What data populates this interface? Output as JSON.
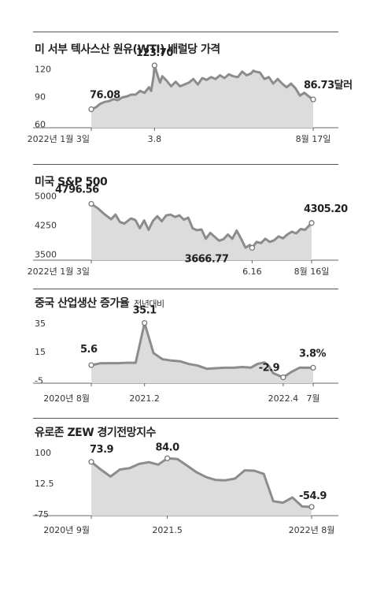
{
  "chart_data": [
    {
      "type": "area",
      "title": "미 서부 텍사스산 원유(WTI) 배럴당 가격",
      "subtitle": "",
      "y_ticks": [
        120,
        90,
        60
      ],
      "ylim": [
        56,
        128
      ],
      "x_ticks": [
        {
          "label": "2022년 1월 3일",
          "x": 0
        },
        {
          "label": "3.8",
          "x": 0.285
        },
        {
          "label": "8월 17일",
          "x": 1
        }
      ],
      "series": [
        {
          "x": [
            0,
            0.02,
            0.04,
            0.06,
            0.08,
            0.1,
            0.12,
            0.14,
            0.16,
            0.18,
            0.2,
            0.22,
            0.24,
            0.25,
            0.26,
            0.27,
            0.28,
            0.285,
            0.3,
            0.31,
            0.32,
            0.34,
            0.36,
            0.38,
            0.4,
            0.42,
            0.44,
            0.46,
            0.48,
            0.5,
            0.52,
            0.54,
            0.56,
            0.58,
            0.6,
            0.62,
            0.64,
            0.66,
            0.68,
            0.7,
            0.72,
            0.73,
            0.74,
            0.76,
            0.78,
            0.8,
            0.82,
            0.84,
            0.86,
            0.88,
            0.9,
            0.92,
            0.94,
            0.96,
            0.98,
            1
          ],
          "values": [
            76.08,
            78,
            82,
            84,
            85,
            87,
            86,
            89,
            90,
            92,
            92,
            96,
            94,
            97,
            100,
            96,
            111,
            123.7,
            112,
            105,
            112,
            107,
            101,
            106,
            101,
            103,
            105,
            109,
            103,
            110,
            108,
            111,
            109,
            113,
            110,
            114,
            112,
            111,
            117,
            113,
            115,
            118,
            117,
            116,
            109,
            111,
            104,
            109,
            104,
            100,
            104,
            99,
            91,
            94,
            90,
            86.73
          ]
        }
      ],
      "labels": [
        {
          "text": "76.08",
          "x": 0,
          "y": 76.08
        },
        {
          "text": "123.70",
          "x": 0.285,
          "y": 123.7
        },
        {
          "text": "86.73달러",
          "x": 1,
          "y": 86.73
        }
      ]
    },
    {
      "type": "area",
      "title": "미국 S&P 500",
      "subtitle": "",
      "y_ticks": [
        5000,
        4250,
        3500
      ],
      "ylim": [
        3350,
        5050
      ],
      "x_ticks": [
        {
          "label": "2022년 1월 3일",
          "x": 0
        },
        {
          "label": "6.16",
          "x": 0.73
        },
        {
          "label": "8월 16일",
          "x": 1
        }
      ],
      "series": [
        {
          "x": [
            0,
            0.03,
            0.06,
            0.09,
            0.11,
            0.13,
            0.15,
            0.18,
            0.2,
            0.22,
            0.24,
            0.26,
            0.28,
            0.3,
            0.32,
            0.34,
            0.36,
            0.38,
            0.4,
            0.42,
            0.44,
            0.46,
            0.48,
            0.5,
            0.52,
            0.54,
            0.56,
            0.58,
            0.6,
            0.62,
            0.64,
            0.66,
            0.68,
            0.7,
            0.72,
            0.73,
            0.75,
            0.77,
            0.79,
            0.81,
            0.83,
            0.85,
            0.87,
            0.89,
            0.91,
            0.93,
            0.95,
            0.97,
            1
          ],
          "values": [
            4796.56,
            4680,
            4530,
            4400,
            4520,
            4330,
            4290,
            4420,
            4380,
            4170,
            4370,
            4130,
            4360,
            4480,
            4350,
            4500,
            4520,
            4460,
            4500,
            4390,
            4440,
            4170,
            4120,
            4140,
            3900,
            4050,
            3950,
            3850,
            3890,
            4010,
            3900,
            4110,
            3900,
            3670,
            3740,
            3666.77,
            3820,
            3790,
            3900,
            3820,
            3860,
            3960,
            3910,
            4010,
            4080,
            4040,
            4150,
            4130,
            4305.2
          ]
        }
      ],
      "labels": [
        {
          "text": "4796.56",
          "x": 0,
          "y": 4796.56
        },
        {
          "text": "3666.77",
          "x": 0.73,
          "y": 3666.77
        },
        {
          "text": "4305.20",
          "x": 1,
          "y": 4305.2
        }
      ]
    },
    {
      "type": "area",
      "title": "중국 산업생산 증가율",
      "subtitle": "전년대비",
      "y_ticks": [
        35,
        15,
        -5
      ],
      "ylim": [
        -7,
        36
      ],
      "x_ticks": [
        {
          "label": "2020년 8월",
          "x": 0
        },
        {
          "label": "2021.2",
          "x": 0.24
        },
        {
          "label": "2022.4",
          "x": 0.865
        },
        {
          "label": "7월",
          "x": 1
        }
      ],
      "series": [
        {
          "x": [
            0,
            0.04,
            0.08,
            0.12,
            0.16,
            0.2,
            0.24,
            0.28,
            0.32,
            0.36,
            0.4,
            0.44,
            0.48,
            0.52,
            0.56,
            0.6,
            0.64,
            0.68,
            0.72,
            0.75,
            0.78,
            0.8,
            0.82,
            0.865,
            0.9,
            0.94,
            0.97,
            1
          ],
          "values": [
            5.6,
            6.9,
            7,
            7,
            7.3,
            7.3,
            35.1,
            14.1,
            9.8,
            8.8,
            8.3,
            6.4,
            5.3,
            3.1,
            3.5,
            3.8,
            3.8,
            4.3,
            3.9,
            6.5,
            7.5,
            5,
            0,
            -2.9,
            0.7,
            3.9,
            3.8,
            3.8
          ]
        }
      ],
      "labels": [
        {
          "text": "5.6",
          "x": 0,
          "y": 5.6
        },
        {
          "text": "35.1",
          "x": 0.24,
          "y": 35.1
        },
        {
          "text": "-2.9",
          "x": 0.865,
          "y": -2.9
        },
        {
          "text": "3.8%",
          "x": 1,
          "y": 3.8
        }
      ]
    },
    {
      "type": "area",
      "title": "유로존 ZEW 경기전망지수",
      "subtitle": "",
      "y_ticks": [
        "100",
        "12.5",
        "-75"
      ],
      "ylim": [
        -80,
        105
      ],
      "x_ticks": [
        {
          "label": "2020년 9월",
          "x": 0
        },
        {
          "label": "2021.5",
          "x": 0.345
        },
        {
          "label": "2022년 8월",
          "x": 1
        }
      ],
      "series": [
        {
          "x": [
            0,
            0.043,
            0.087,
            0.13,
            0.174,
            0.217,
            0.261,
            0.304,
            0.345,
            0.391,
            0.435,
            0.478,
            0.522,
            0.565,
            0.609,
            0.652,
            0.696,
            0.739,
            0.783,
            0.826,
            0.87,
            0.913,
            0.957,
            1
          ],
          "values": [
            73.9,
            52,
            32,
            52,
            56,
            68,
            73,
            66,
            84,
            82,
            63,
            44,
            30,
            22,
            21,
            26,
            49.4,
            48.6,
            39.3,
            -38.7,
            -43,
            -28,
            -53.8,
            -54.9
          ]
        }
      ],
      "labels": [
        {
          "text": "73.9",
          "x": 0,
          "y": 73.9
        },
        {
          "text": "84.0",
          "x": 0.345,
          "y": 84
        },
        {
          "text": "-54.9",
          "x": 1,
          "y": -54.9
        }
      ]
    }
  ]
}
